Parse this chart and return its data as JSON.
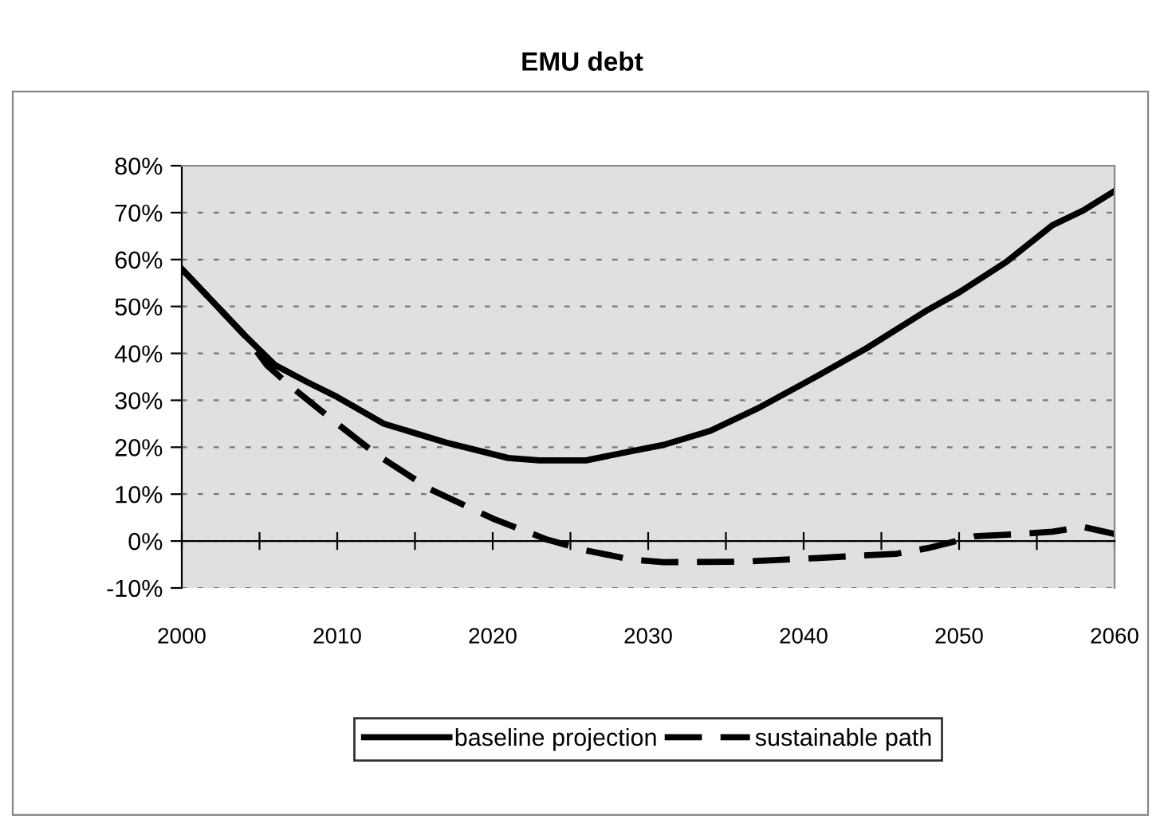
{
  "chart_data": {
    "type": "line",
    "title": "EMU debt",
    "xlim": [
      2000,
      2060
    ],
    "xticks": [
      2000,
      {
        "value": 2005,
        "label": null
      },
      2010,
      {
        "value": 2015,
        "label": null
      },
      2020,
      {
        "value": 2025,
        "label": null
      },
      2030,
      {
        "value": 2035,
        "label": null
      },
      2040,
      {
        "value": 2045,
        "label": null
      },
      2050,
      {
        "value": 2055,
        "label": null
      },
      2060
    ],
    "ylim": [
      -10,
      80
    ],
    "yticks": [
      {
        "value": -10,
        "label": "-10%"
      },
      {
        "value": 0,
        "label": "0%"
      },
      {
        "value": 10,
        "label": "10%"
      },
      {
        "value": 20,
        "label": "20%"
      },
      {
        "value": 30,
        "label": "30%"
      },
      {
        "value": 40,
        "label": "40%"
      },
      {
        "value": 50,
        "label": "50%"
      },
      {
        "value": 60,
        "label": "60%"
      },
      {
        "value": 70,
        "label": "70%"
      },
      {
        "value": 80,
        "label": "80%"
      }
    ],
    "grid": "y",
    "legend": "bottom",
    "series": [
      {
        "name": "baseline projection",
        "color": "#000000",
        "line_style": "solid",
        "x": [
          2000,
          2002,
          2004,
          2006,
          2008,
          2010,
          2013,
          2017,
          2021,
          2023,
          2026,
          2029,
          2031,
          2034,
          2037,
          2041,
          2044,
          2048,
          2050,
          2053,
          2056,
          2058,
          2060
        ],
        "values": [
          58,
          51,
          44,
          37.5,
          34,
          30.7,
          25,
          21,
          17.7,
          17.2,
          17.2,
          19.2,
          20.5,
          23.5,
          28.2,
          35.4,
          41,
          49.3,
          53,
          59.4,
          67.3,
          70.5,
          74.6
        ]
      },
      {
        "name": "sustainable path",
        "color": "#000000",
        "line_style": "dashed",
        "x": [
          2000,
          2002,
          2004,
          2005.5,
          2007,
          2010,
          2012.6,
          2016,
          2020,
          2023.5,
          2026,
          2029,
          2031,
          2036,
          2041,
          2046,
          2048,
          2051,
          2054,
          2056,
          2058,
          2060
        ],
        "values": [
          58,
          51,
          44,
          37.4,
          33,
          25,
          18.3,
          11,
          4.8,
          0.3,
          -2,
          -4,
          -4.5,
          -4.4,
          -3.6,
          -2.7,
          -1.5,
          1,
          1.5,
          2,
          3,
          1.5
        ]
      }
    ]
  }
}
